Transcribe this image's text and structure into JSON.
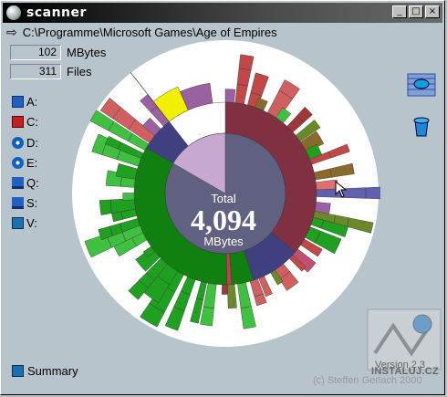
{
  "window": {
    "title": "scanner"
  },
  "path": {
    "text": "C:\\Programme\\Microsoft Games\\Age of Empires"
  },
  "stats": [
    {
      "value": "102",
      "label": "MBytes"
    },
    {
      "value": "311",
      "label": "Files"
    }
  ],
  "drives": [
    {
      "label": "A:",
      "icon": "floppy-icon"
    },
    {
      "label": "C:",
      "icon": "hard-disk-icon"
    },
    {
      "label": "D:",
      "icon": "cd-icon"
    },
    {
      "label": "E:",
      "icon": "cd-icon"
    },
    {
      "label": "Q:",
      "icon": "network-drive-icon"
    },
    {
      "label": "S:",
      "icon": "network-drive-icon"
    },
    {
      "label": "V:",
      "icon": "network-drive-icon"
    }
  ],
  "summary": {
    "label": "Summary"
  },
  "center": {
    "line1": "Total",
    "line2": "4,094",
    "line3": "MBytes"
  },
  "footer": {
    "version": "Version 2.3",
    "copyright": "(c) Steffen Gerlach 2000",
    "watermark": "INSTALUJ.CZ"
  },
  "colors": {
    "accent": "#606080",
    "highlight_ring": "#803040",
    "green_ring": "#108010"
  }
}
